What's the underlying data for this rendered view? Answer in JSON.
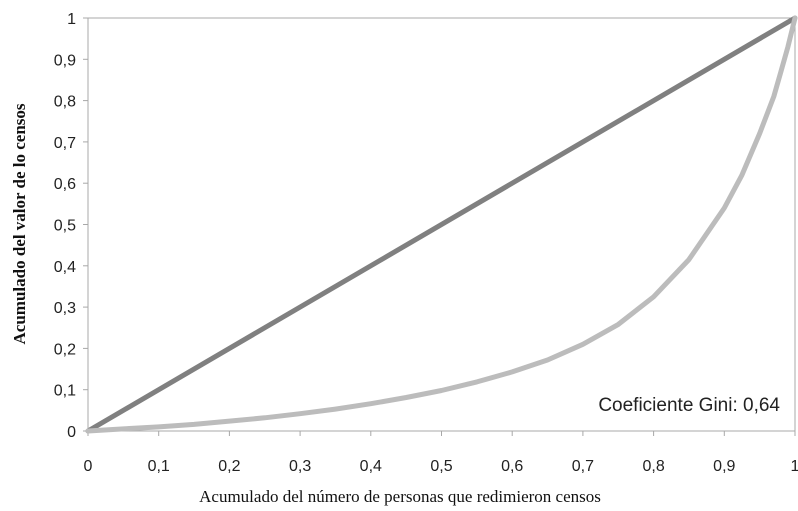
{
  "chart_data": {
    "type": "line",
    "xlabel": "Acumulado del número de personas que redimieron censos",
    "ylabel": "Acumulado del valor de lo censos",
    "xlim": [
      0,
      1
    ],
    "ylim": [
      0,
      1
    ],
    "x_ticks": [
      "0",
      "0,1",
      "0,2",
      "0,3",
      "0,4",
      "0,5",
      "0,6",
      "0,7",
      "0,8",
      "0,9",
      "1"
    ],
    "y_ticks": [
      "0",
      "0,1",
      "0,2",
      "0,3",
      "0,4",
      "0,5",
      "0,6",
      "0,7",
      "0,8",
      "0,9",
      "1"
    ],
    "grid": false,
    "annotation": "Coeficiente Gini: 0,64",
    "series": [
      {
        "color": "#808080",
        "x": [
          0,
          1
        ],
        "y": [
          0,
          1
        ]
      },
      {
        "color": "#bcbcbc",
        "x": [
          0,
          0.05,
          0.1,
          0.15,
          0.2,
          0.25,
          0.3,
          0.35,
          0.4,
          0.45,
          0.5,
          0.55,
          0.6,
          0.65,
          0.7,
          0.75,
          0.8,
          0.85,
          0.9,
          0.925,
          0.95,
          0.97,
          0.98,
          0.99,
          1
        ],
        "y": [
          0,
          0.005,
          0.01,
          0.016,
          0.024,
          0.032,
          0.042,
          0.053,
          0.066,
          0.081,
          0.098,
          0.119,
          0.143,
          0.172,
          0.21,
          0.258,
          0.325,
          0.415,
          0.54,
          0.62,
          0.72,
          0.81,
          0.87,
          0.93,
          1
        ]
      }
    ]
  }
}
